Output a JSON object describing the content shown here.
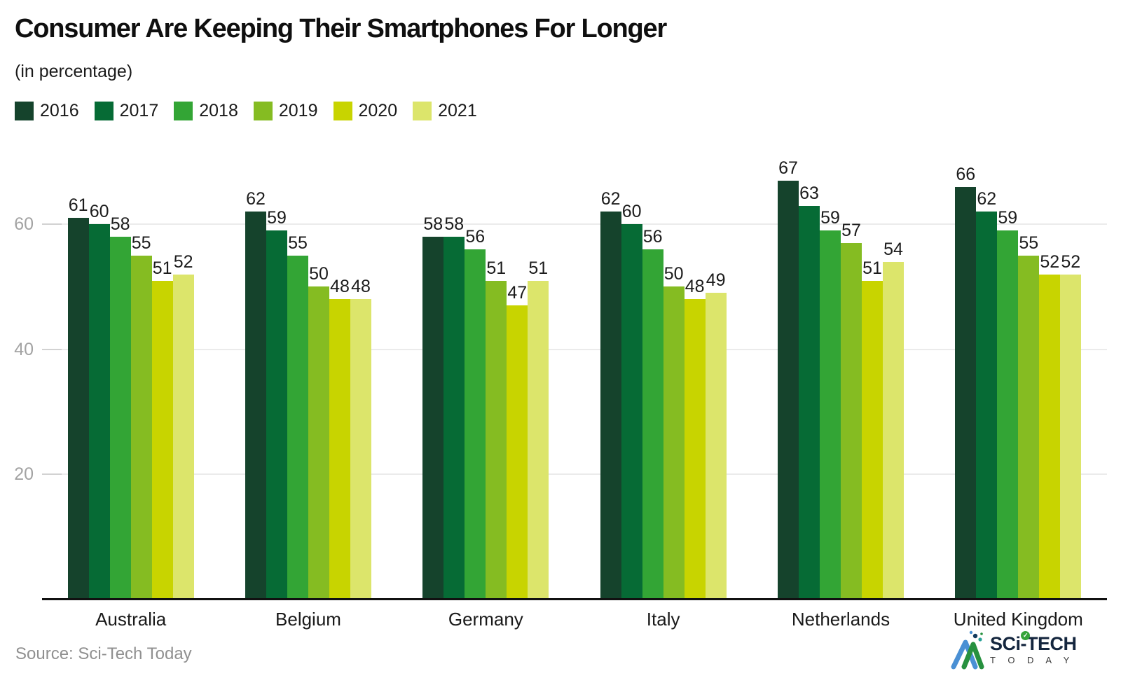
{
  "header": {
    "title": "Consumer Are Keeping Their Smartphones For Longer",
    "subtitle": "(in percentage)"
  },
  "chart_data": {
    "type": "bar",
    "title": "Consumer Are Keeping Their Smartphones For Longer",
    "unit": "percent",
    "categories": [
      "Australia",
      "Belgium",
      "Germany",
      "Italy",
      "Netherlands",
      "United Kingdom"
    ],
    "series": [
      {
        "name": "2016",
        "color": "#15432C",
        "values": [
          61,
          62,
          58,
          62,
          67,
          66
        ]
      },
      {
        "name": "2017",
        "color": "#066B35",
        "values": [
          60,
          59,
          58,
          60,
          63,
          62
        ]
      },
      {
        "name": "2018",
        "color": "#33A535",
        "values": [
          58,
          55,
          56,
          56,
          59,
          59
        ]
      },
      {
        "name": "2019",
        "color": "#85BC22",
        "values": [
          55,
          50,
          51,
          50,
          57,
          55
        ]
      },
      {
        "name": "2020",
        "color": "#C8D400",
        "values": [
          51,
          48,
          47,
          48,
          51,
          52
        ]
      },
      {
        "name": "2021",
        "color": "#DCE56B",
        "values": [
          52,
          48,
          51,
          49,
          54,
          52
        ]
      }
    ],
    "y_ticks": [
      20,
      40,
      60
    ],
    "ylim": [
      0,
      73.5
    ],
    "grid": true,
    "legend_position": "top",
    "value_labels": true
  },
  "footer": {
    "source": "Source: Sci-Tech Today",
    "logo": {
      "line1": "SCi-TECH",
      "line2": "T O D A Y",
      "check_glyph": "✓"
    }
  }
}
